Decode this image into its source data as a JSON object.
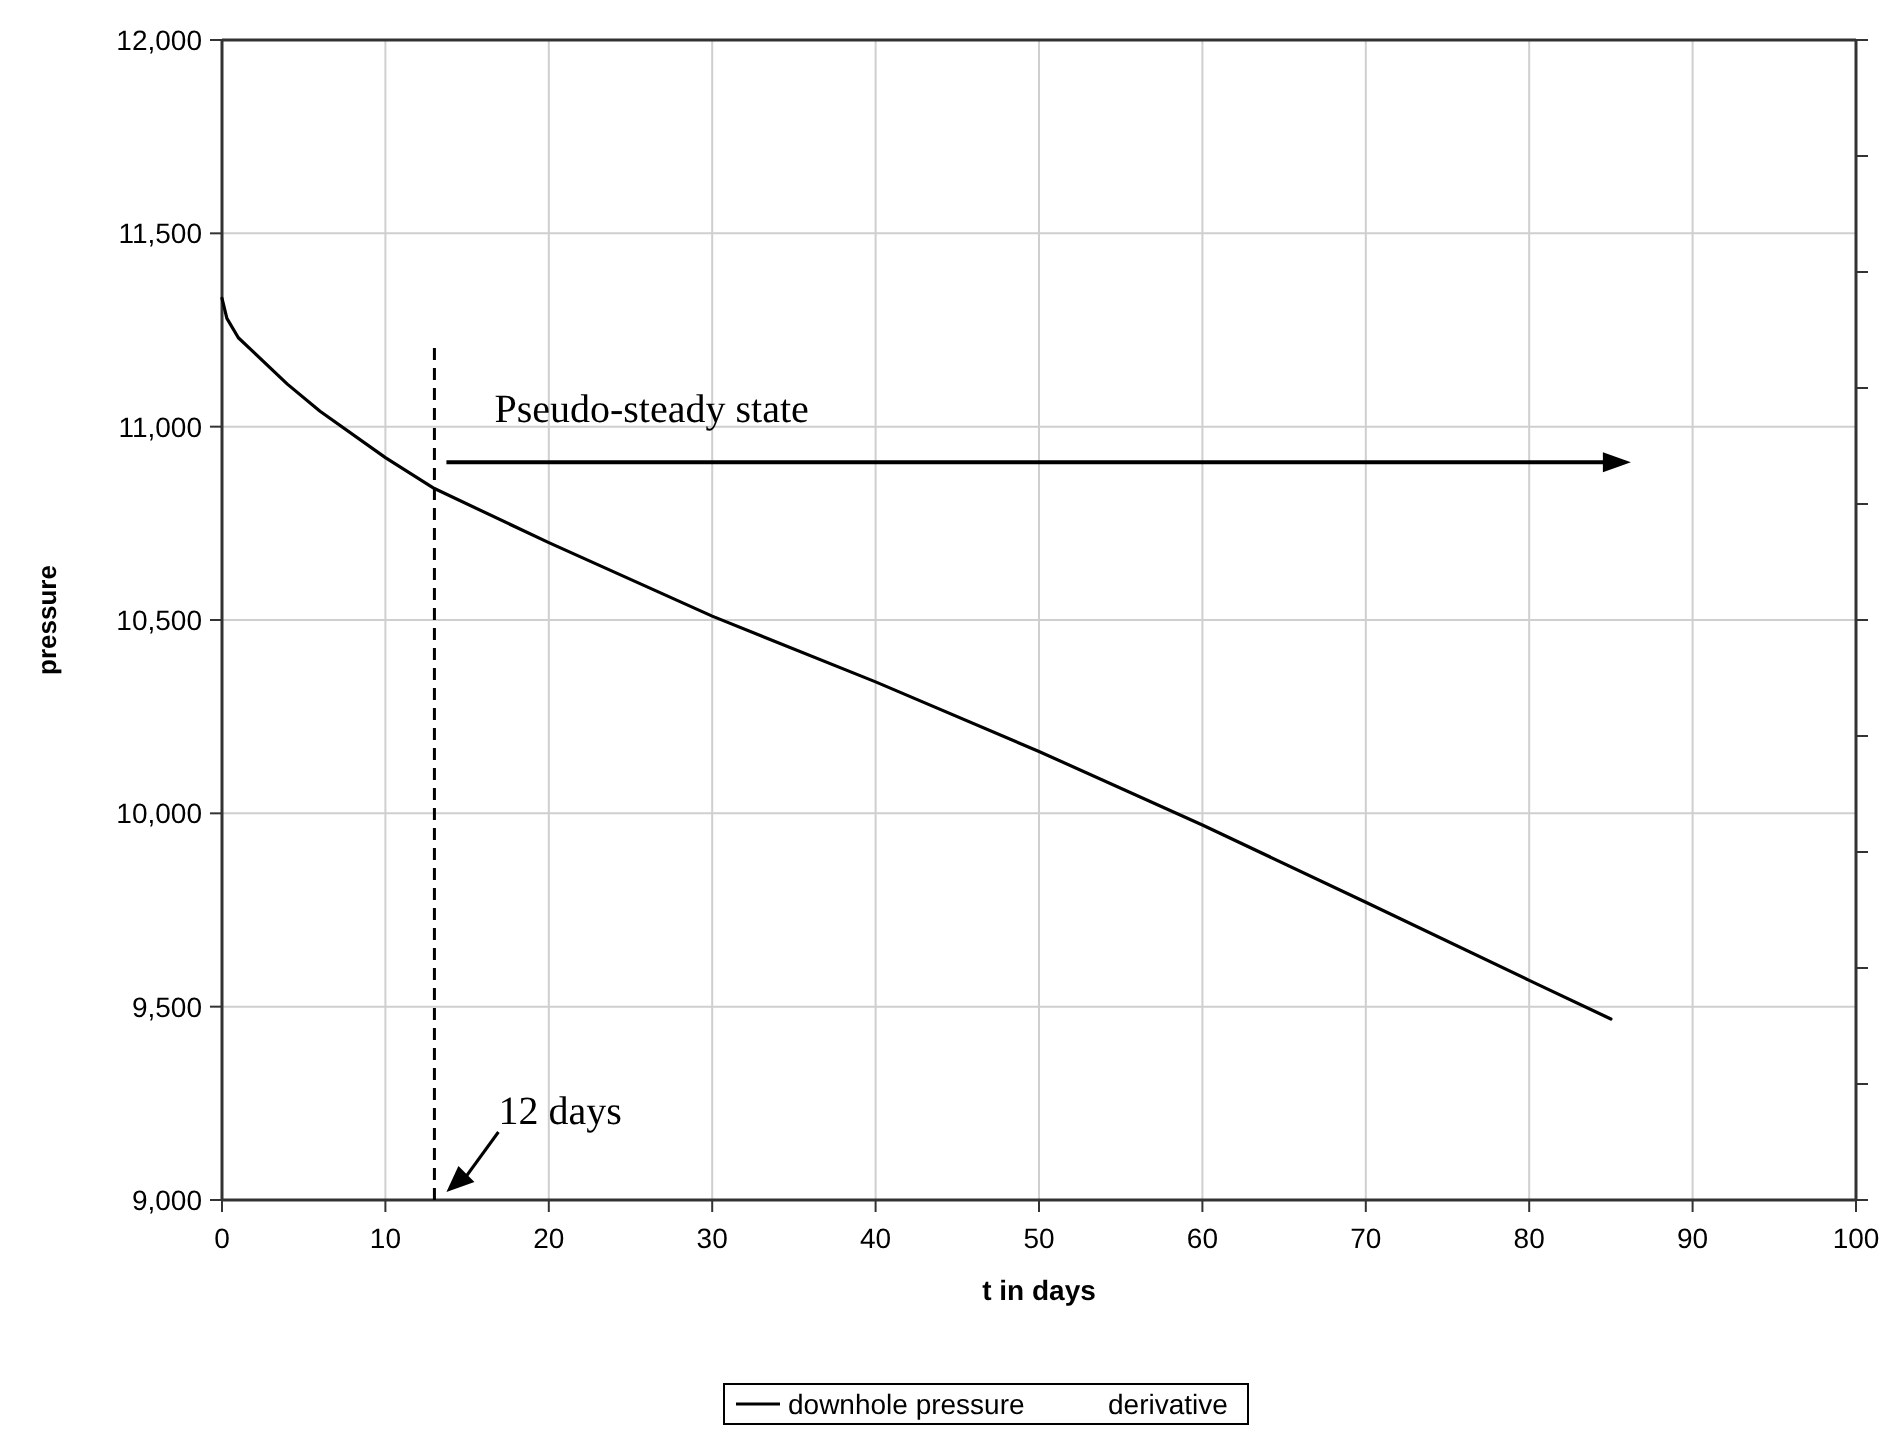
{
  "chart_data": {
    "type": "line",
    "xlabel": "t in days",
    "ylabel": "pressure",
    "x": [
      0,
      0.3,
      1,
      2,
      4,
      6,
      10,
      13,
      20,
      30,
      40,
      50,
      60,
      70,
      80,
      85
    ],
    "series": [
      {
        "name": "downhole pressure",
        "color": "#000000",
        "values": [
          11332,
          11280,
          11230,
          11190,
          11110,
          11040,
          10920,
          10840,
          10700,
          10510,
          10340,
          10160,
          9970,
          9770,
          9568,
          9468
        ]
      },
      {
        "name": "derivative",
        "values": [
          null,
          null,
          null,
          null,
          null,
          null,
          null,
          null,
          null,
          null,
          null,
          null,
          null,
          null,
          null,
          null
        ]
      }
    ],
    "xlim": [
      0,
      100
    ],
    "xticks": [
      0,
      10,
      20,
      30,
      40,
      50,
      60,
      70,
      80,
      90,
      100
    ],
    "ylim": [
      9000,
      12000
    ],
    "yticks": [
      {
        "value": 9000,
        "label": "9,000"
      },
      {
        "value": 9500,
        "label": "9,500"
      },
      {
        "value": 10000,
        "label": "10,000"
      },
      {
        "value": 10500,
        "label": "10,500"
      },
      {
        "value": 11000,
        "label": "11,000"
      },
      {
        "value": 11500,
        "label": "11,500"
      },
      {
        "value": 12000,
        "label": "12,000"
      }
    ],
    "ref_lines": [
      {
        "axis": "x",
        "value": 13,
        "line_style": "dashed",
        "label": "12 days"
      }
    ],
    "annotations": [
      {
        "text": "Pseudo-steady state",
        "x": 13,
        "y": 10908
      }
    ],
    "grid": true,
    "legend": "bottom",
    "marker": "none",
    "line_style": "solid"
  }
}
